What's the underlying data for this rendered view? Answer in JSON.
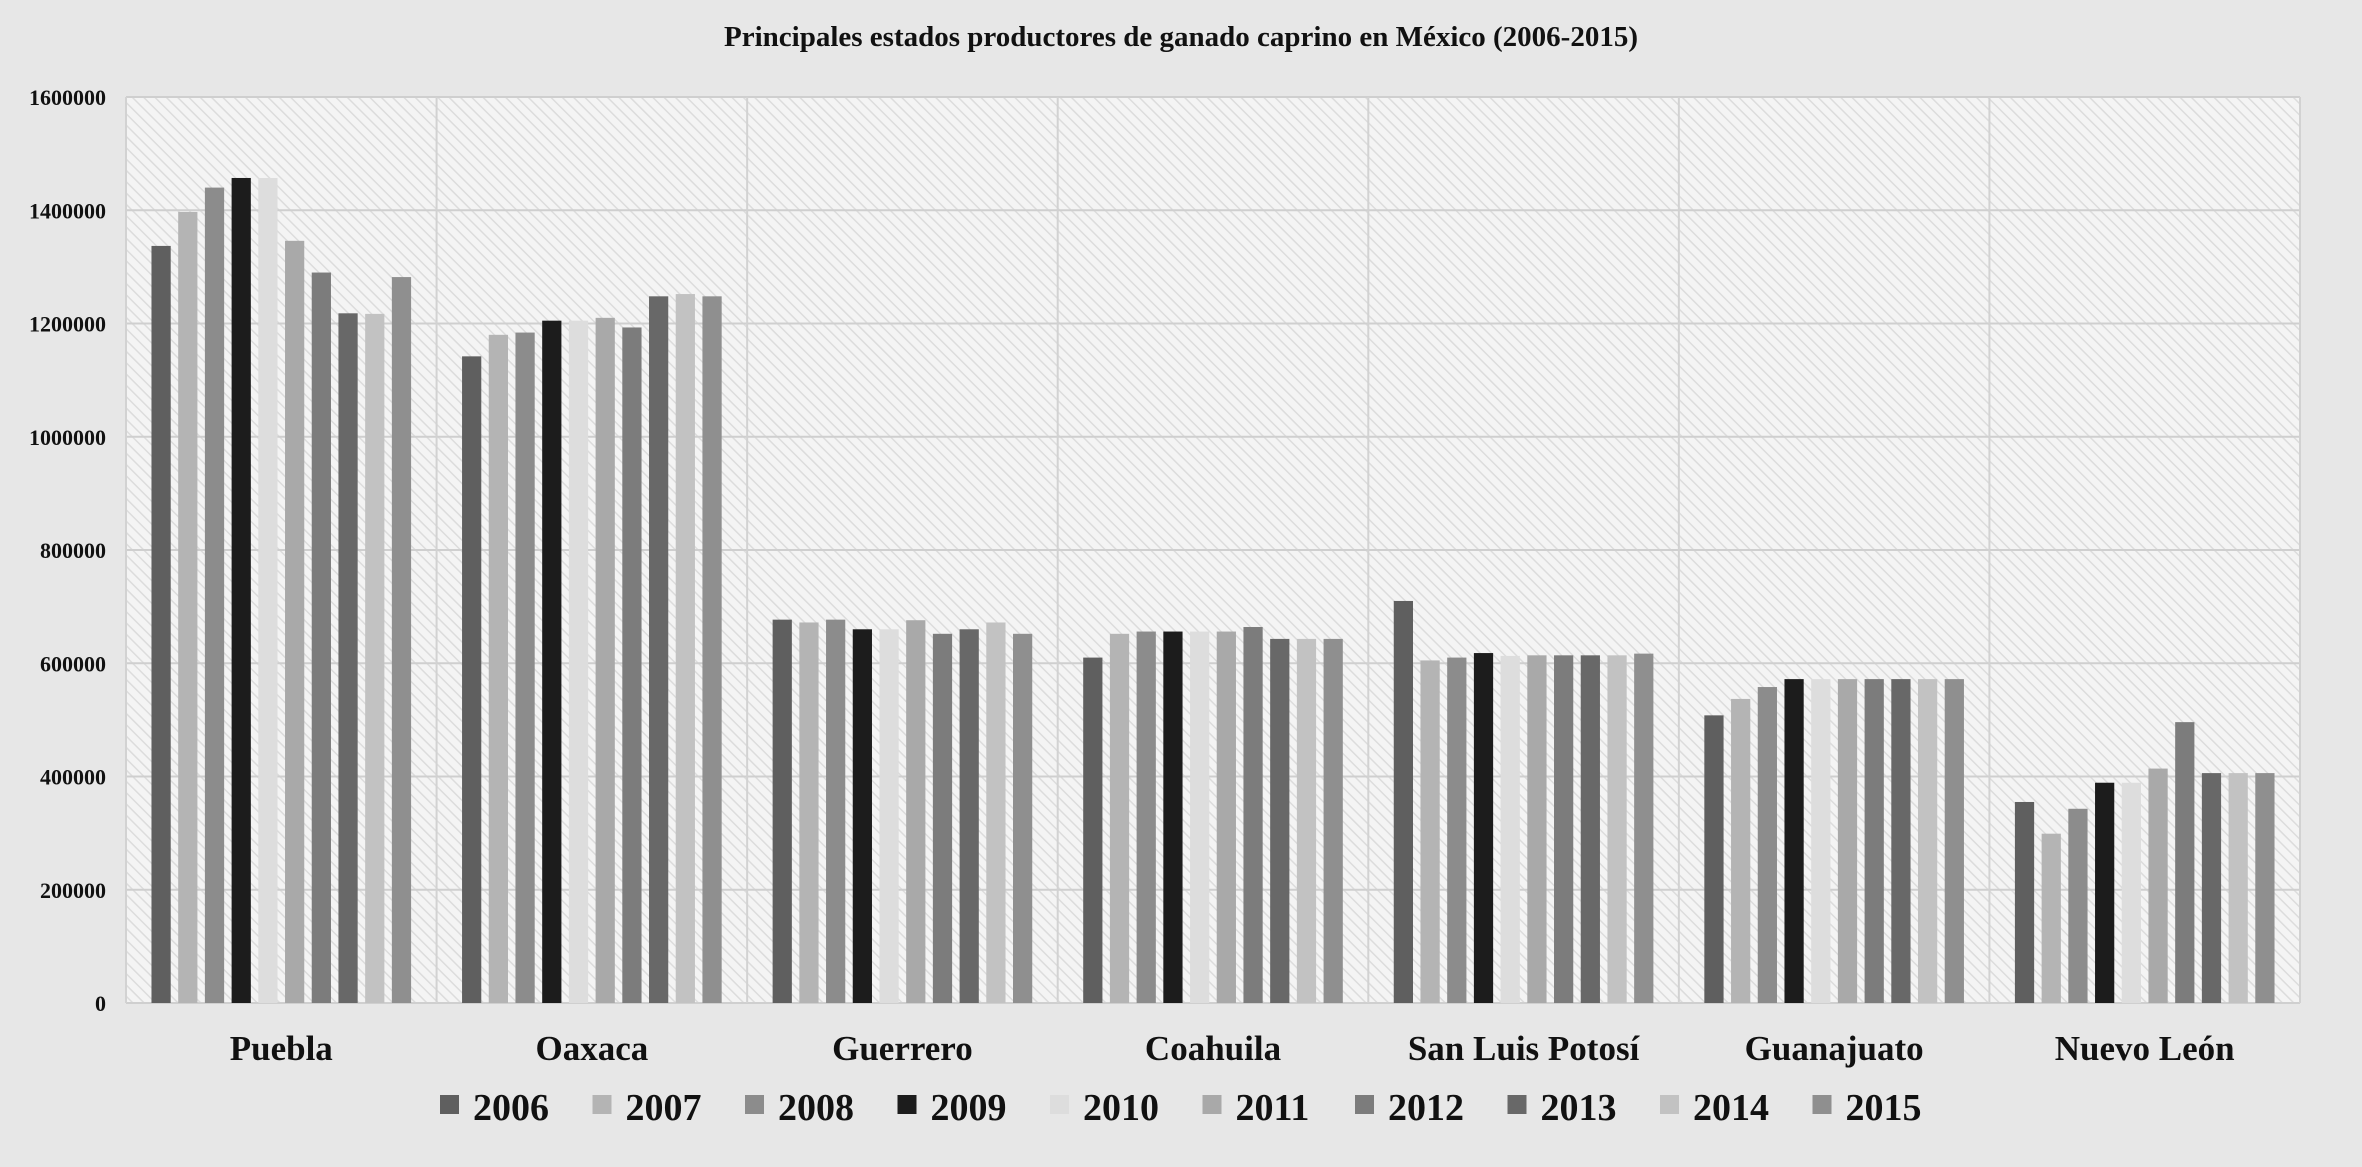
{
  "chart_data": {
    "type": "bar",
    "title": "Principales estados productores de ganado caprino en México (2006-2015)",
    "xlabel": "",
    "ylabel": "",
    "ylim": [
      0,
      1600000
    ],
    "yticks": [
      "0",
      "200000",
      "400000",
      "600000",
      "800000",
      "1000000",
      "1200000",
      "1400000",
      "1600000"
    ],
    "ytick_values": [
      0,
      200000,
      400000,
      600000,
      800000,
      1000000,
      1200000,
      1400000,
      1600000
    ],
    "categories": [
      "Puebla",
      "Oaxaca",
      "Guerrero",
      "Coahuila",
      "San Luis Potosí",
      "Guanajuato",
      "Nuevo León"
    ],
    "legend_position": "bottom",
    "series": [
      {
        "name": "2006",
        "color": "#5f5f5f",
        "values": [
          1337000,
          1142000,
          677000,
          610000,
          710000,
          508000,
          355000
        ]
      },
      {
        "name": "2007",
        "color": "#b4b4b4",
        "values": [
          1397000,
          1180000,
          672000,
          652000,
          605000,
          537000,
          299000
        ]
      },
      {
        "name": "2008",
        "color": "#8c8c8c",
        "values": [
          1440000,
          1184000,
          677000,
          656000,
          610000,
          558000,
          343000
        ]
      },
      {
        "name": "2009",
        "color": "#1c1c1c",
        "values": [
          1457000,
          1205000,
          660000,
          656000,
          618000,
          572000,
          389000
        ]
      },
      {
        "name": "2010",
        "color": "#dddddd",
        "values": [
          1457000,
          1205000,
          660000,
          656000,
          613000,
          572000,
          389000
        ]
      },
      {
        "name": "2011",
        "color": "#a9a9a9",
        "values": [
          1346000,
          1210000,
          676000,
          656000,
          614000,
          572000,
          414000
        ]
      },
      {
        "name": "2012",
        "color": "#7c7c7c",
        "values": [
          1290000,
          1193000,
          652000,
          664000,
          614000,
          572000,
          496000
        ]
      },
      {
        "name": "2013",
        "color": "#686868",
        "values": [
          1218000,
          1248000,
          660000,
          643000,
          614000,
          572000,
          406000
        ]
      },
      {
        "name": "2014",
        "color": "#c2c2c2",
        "values": [
          1217000,
          1252000,
          672000,
          643000,
          614000,
          572000,
          406000
        ]
      },
      {
        "name": "2015",
        "color": "#8f8f8f",
        "values": [
          1282000,
          1248000,
          652000,
          643000,
          617000,
          572000,
          406000
        ]
      }
    ]
  }
}
